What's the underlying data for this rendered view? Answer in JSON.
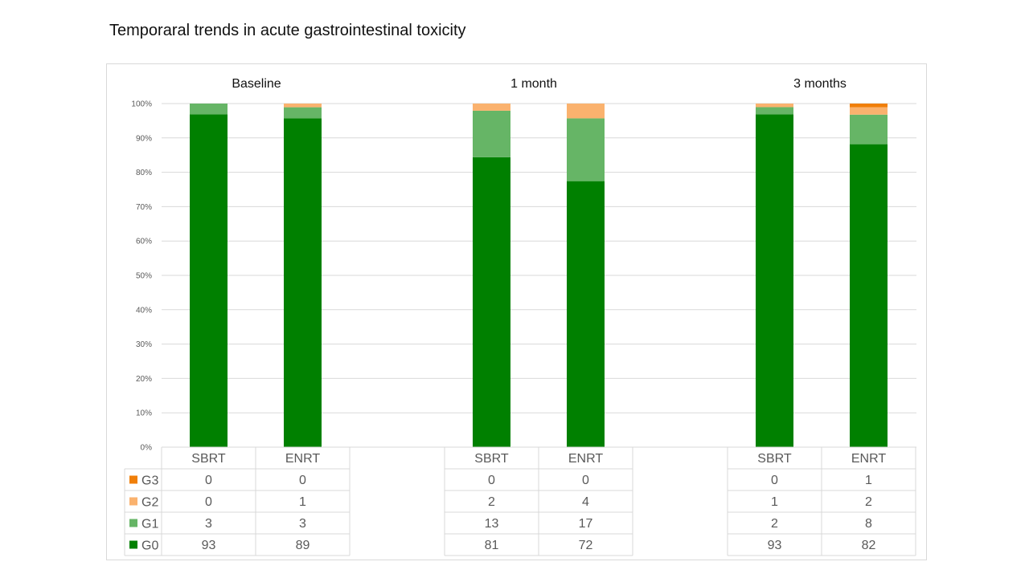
{
  "slide_title": "Temporaral trends in acute gastrointestinal toxicity",
  "chart_data": {
    "type": "bar",
    "stacked": true,
    "normalized": true,
    "ylim": [
      0,
      100
    ],
    "y_ticks": [
      "0%",
      "10%",
      "20%",
      "30%",
      "40%",
      "50%",
      "60%",
      "70%",
      "80%",
      "90%",
      "100%"
    ],
    "grid": true,
    "legend_placement": "left of data table",
    "groups": [
      {
        "title": "Baseline",
        "categories": [
          "SBRT",
          "ENRT"
        ]
      },
      {
        "title": "1 month",
        "categories": [
          "SBRT",
          "ENRT"
        ]
      },
      {
        "title": "3 months",
        "categories": [
          "SBRT",
          "ENRT"
        ]
      }
    ],
    "series": [
      {
        "name": "G3",
        "color": "#F07F09",
        "values": [
          0,
          0,
          0,
          0,
          0,
          1
        ]
      },
      {
        "name": "G2",
        "color": "#FAB26E",
        "values": [
          0,
          1,
          2,
          4,
          1,
          2
        ]
      },
      {
        "name": "G1",
        "color": "#66B566",
        "values": [
          3,
          3,
          13,
          17,
          2,
          8
        ]
      },
      {
        "name": "G0",
        "color": "#008000",
        "values": [
          93,
          89,
          81,
          72,
          93,
          82
        ]
      }
    ]
  }
}
